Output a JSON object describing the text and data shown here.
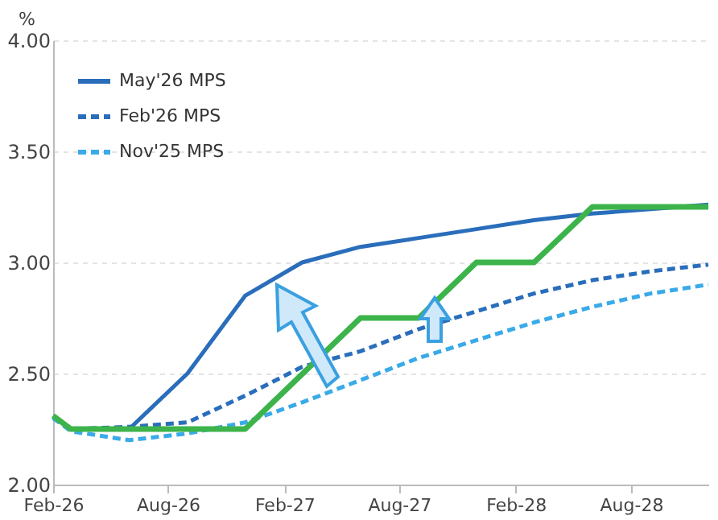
{
  "chart_data": {
    "type": "line",
    "ylabel": "%",
    "x": [
      "2026-02",
      "2026-03",
      "2026-06",
      "2026-09",
      "2026-12",
      "2027-03",
      "2027-06",
      "2027-09",
      "2027-12",
      "2028-03",
      "2028-06",
      "2028-09",
      "2028-12"
    ],
    "series": [
      {
        "name": "May'26 MPS",
        "color": "#2a6ebb",
        "line_style": "solid",
        "values": [
          2.31,
          2.25,
          2.25,
          2.5,
          2.85,
          3.0,
          3.07,
          3.11,
          3.15,
          3.19,
          3.22,
          3.24,
          3.26
        ]
      },
      {
        "name": "Feb'26 MPS",
        "color": "#2a6ebb",
        "line_style": "dashed",
        "values": [
          2.3,
          2.25,
          2.26,
          2.28,
          2.4,
          2.53,
          2.6,
          2.7,
          2.78,
          2.86,
          2.92,
          2.96,
          2.99
        ]
      },
      {
        "name": "Nov'25 MPS",
        "color": "#3aaae8",
        "line_style": "dashed",
        "values": [
          2.3,
          2.24,
          2.2,
          2.23,
          2.28,
          2.37,
          2.47,
          2.57,
          2.65,
          2.73,
          2.8,
          2.86,
          2.9
        ]
      },
      {
        "color": "#3cb44b",
        "line_style": "solid",
        "x": [
          "2026-02",
          "2026-03",
          "2026-12",
          "2027-06",
          "2027-09",
          "2027-12",
          "2028-03",
          "2028-06",
          "2028-12"
        ],
        "values": [
          2.31,
          2.25,
          2.25,
          2.75,
          2.75,
          3.0,
          3.0,
          3.25,
          3.25
        ]
      }
    ],
    "xlim": [
      "2026-02",
      "2028-12"
    ],
    "xticks": [
      {
        "value": "2026-02",
        "label": "Feb-26"
      },
      {
        "value": "2026-08",
        "label": "Aug-26"
      },
      {
        "value": "2027-02",
        "label": "Feb-27"
      },
      {
        "value": "2027-08",
        "label": "Aug-27"
      },
      {
        "value": "2028-02",
        "label": "Feb-28"
      },
      {
        "value": "2028-08",
        "label": "Aug-28"
      }
    ],
    "ylim": [
      2,
      4
    ],
    "yticks": [
      {
        "value": 2,
        "label": "2.00"
      },
      {
        "value": 2.5,
        "label": "2.50"
      },
      {
        "value": 3,
        "label": "3.00"
      },
      {
        "value": 3.5,
        "label": "3.50"
      },
      {
        "value": 4,
        "label": "4.00"
      }
    ],
    "grid": "y",
    "legend": "top left"
  }
}
